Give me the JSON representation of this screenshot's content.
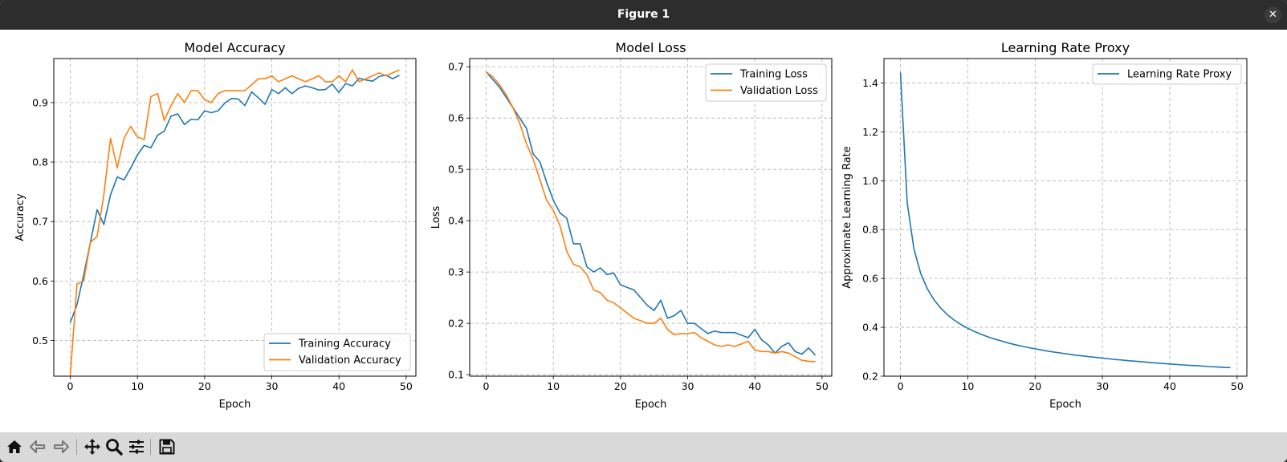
{
  "window": {
    "title": "Figure 1"
  },
  "toolbar": {
    "icons": [
      "home-icon",
      "back-icon",
      "forward-icon",
      "pan-icon",
      "zoom-icon",
      "configure-subplots-icon",
      "save-icon"
    ]
  },
  "colors": {
    "training": "#1f77b4",
    "validation": "#ff7f0e",
    "grid": "#b0b0b0"
  },
  "chart_data": [
    {
      "type": "line",
      "title": "Model Accuracy",
      "xlabel": "Epoch",
      "ylabel": "Accuracy",
      "xlim": [
        -2.45,
        51.45
      ],
      "ylim": [
        0.44,
        0.974
      ],
      "xticks": [
        0,
        10,
        20,
        30,
        40,
        50
      ],
      "yticks": [
        0.5,
        0.6,
        0.7,
        0.8,
        0.9
      ],
      "ytick_labels": [
        "0.5",
        "0.6",
        "0.7",
        "0.8",
        "0.9"
      ],
      "grid": true,
      "legend": "lower right",
      "series": [
        {
          "name": "Training Accuracy",
          "color": "#1f77b4",
          "values": [
            0.53,
            0.56,
            0.61,
            0.665,
            0.72,
            0.695,
            0.745,
            0.775,
            0.77,
            0.79,
            0.812,
            0.828,
            0.824,
            0.845,
            0.852,
            0.877,
            0.881,
            0.863,
            0.872,
            0.871,
            0.886,
            0.883,
            0.886,
            0.899,
            0.907,
            0.906,
            0.895,
            0.918,
            0.908,
            0.897,
            0.922,
            0.915,
            0.925,
            0.915,
            0.924,
            0.928,
            0.925,
            0.921,
            0.922,
            0.931,
            0.917,
            0.932,
            0.928,
            0.941,
            0.938,
            0.936,
            0.944,
            0.946,
            0.94,
            0.946
          ]
        },
        {
          "name": "Validation Accuracy",
          "color": "#ff7f0e",
          "values": [
            0.44,
            0.595,
            0.6,
            0.665,
            0.675,
            0.745,
            0.84,
            0.79,
            0.84,
            0.86,
            0.842,
            0.838,
            0.91,
            0.915,
            0.87,
            0.895,
            0.915,
            0.9,
            0.92,
            0.92,
            0.905,
            0.9,
            0.915,
            0.92,
            0.92,
            0.92,
            0.92,
            0.93,
            0.94,
            0.94,
            0.945,
            0.935,
            0.94,
            0.945,
            0.94,
            0.935,
            0.94,
            0.945,
            0.935,
            0.935,
            0.945,
            0.935,
            0.955,
            0.935,
            0.94,
            0.945,
            0.95,
            0.945,
            0.95,
            0.955
          ]
        }
      ]
    },
    {
      "type": "line",
      "title": "Model Loss",
      "xlabel": "Epoch",
      "ylabel": "Loss",
      "xlim": [
        -2.45,
        51.45
      ],
      "ylim": [
        0.097,
        0.716
      ],
      "xticks": [
        0,
        10,
        20,
        30,
        40,
        50
      ],
      "yticks": [
        0.1,
        0.2,
        0.3,
        0.4,
        0.5,
        0.6,
        0.7
      ],
      "ytick_labels": [
        "0.1",
        "0.2",
        "0.3",
        "0.4",
        "0.5",
        "0.6",
        "0.7"
      ],
      "grid": true,
      "legend": "upper right",
      "series": [
        {
          "name": "Training Loss",
          "color": "#1f77b4",
          "values": [
            0.69,
            0.675,
            0.66,
            0.64,
            0.62,
            0.6,
            0.58,
            0.53,
            0.515,
            0.475,
            0.44,
            0.415,
            0.405,
            0.355,
            0.355,
            0.31,
            0.3,
            0.308,
            0.295,
            0.298,
            0.275,
            0.27,
            0.265,
            0.25,
            0.235,
            0.225,
            0.245,
            0.21,
            0.215,
            0.225,
            0.2,
            0.2,
            0.19,
            0.18,
            0.185,
            0.182,
            0.182,
            0.182,
            0.177,
            0.172,
            0.188,
            0.168,
            0.158,
            0.142,
            0.155,
            0.162,
            0.145,
            0.14,
            0.152,
            0.138
          ]
        },
        {
          "name": "Validation Loss",
          "color": "#ff7f0e",
          "values": [
            0.69,
            0.68,
            0.665,
            0.645,
            0.62,
            0.59,
            0.55,
            0.52,
            0.48,
            0.44,
            0.42,
            0.39,
            0.34,
            0.315,
            0.31,
            0.295,
            0.265,
            0.26,
            0.245,
            0.24,
            0.23,
            0.22,
            0.21,
            0.205,
            0.2,
            0.2,
            0.21,
            0.188,
            0.178,
            0.18,
            0.18,
            0.182,
            0.172,
            0.165,
            0.158,
            0.155,
            0.158,
            0.155,
            0.16,
            0.165,
            0.148,
            0.145,
            0.145,
            0.142,
            0.145,
            0.142,
            0.135,
            0.128,
            0.126,
            0.125
          ]
        }
      ]
    },
    {
      "type": "line",
      "title": "Learning Rate Proxy",
      "xlabel": "Epoch",
      "ylabel": "Approximate Learning Rate",
      "xlim": [
        -2.45,
        51.45
      ],
      "ylim": [
        0.2,
        1.5
      ],
      "xticks": [
        0,
        10,
        20,
        30,
        40,
        50
      ],
      "yticks": [
        0.2,
        0.4,
        0.6,
        0.8,
        1.0,
        1.2,
        1.4
      ],
      "ytick_labels": [
        "0.2",
        "0.4",
        "0.6",
        "0.8",
        "1.0",
        "1.2",
        "1.4"
      ],
      "grid": true,
      "legend": "upper right",
      "series": [
        {
          "name": "Learning Rate Proxy",
          "color": "#1f77b4",
          "values": [
            1.443,
            0.91,
            0.721,
            0.621,
            0.557,
            0.512,
            0.478,
            0.451,
            0.429,
            0.411,
            0.396,
            0.383,
            0.371,
            0.361,
            0.352,
            0.344,
            0.336,
            0.329,
            0.323,
            0.317,
            0.312,
            0.307,
            0.302,
            0.298,
            0.294,
            0.29,
            0.286,
            0.283,
            0.28,
            0.277,
            0.274,
            0.271,
            0.268,
            0.266,
            0.263,
            0.261,
            0.259,
            0.256,
            0.254,
            0.252,
            0.25,
            0.248,
            0.246,
            0.244,
            0.243,
            0.241,
            0.239,
            0.238,
            0.236,
            0.235
          ]
        }
      ]
    }
  ]
}
